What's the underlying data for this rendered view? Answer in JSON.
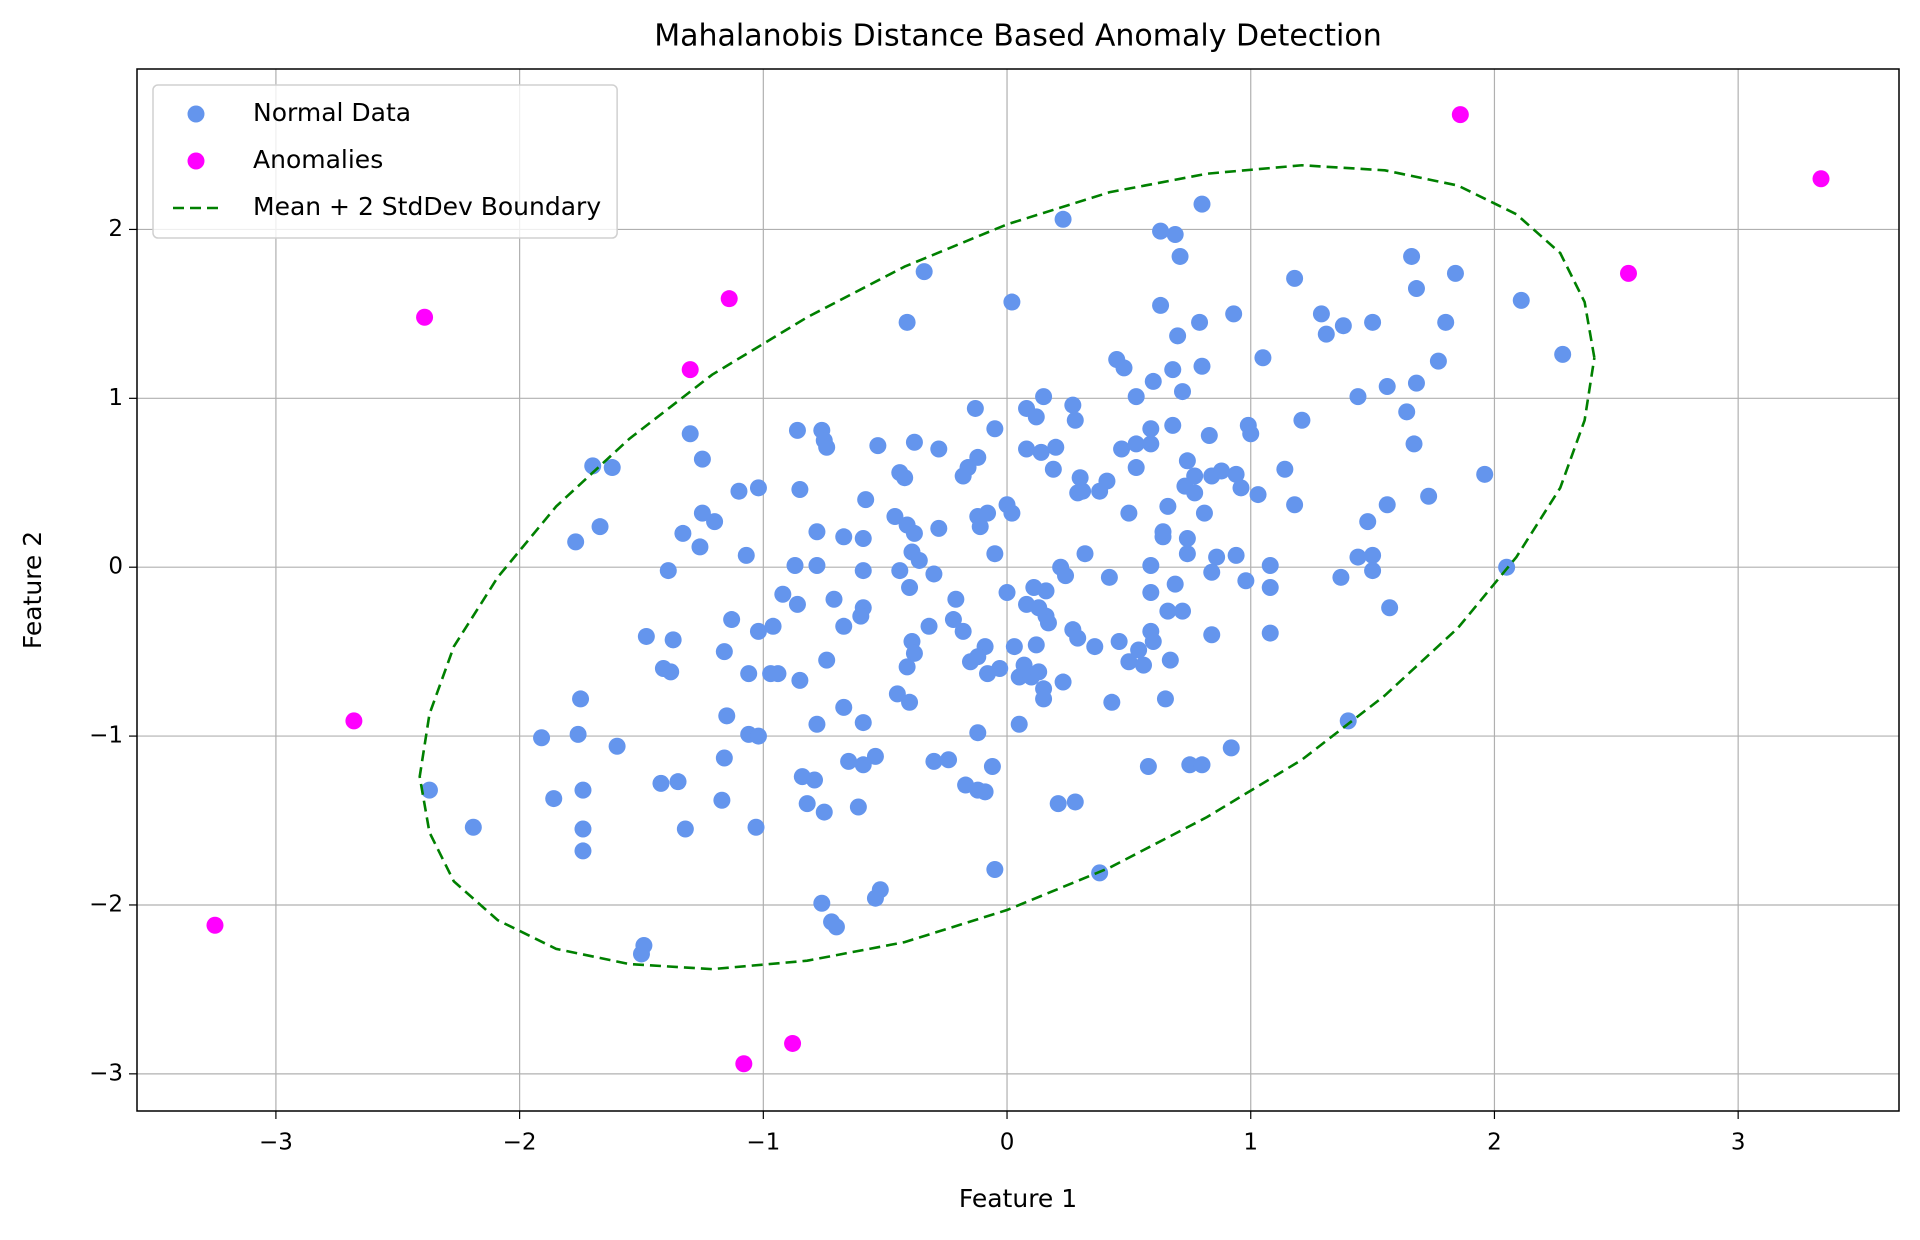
{
  "chart_data": {
    "type": "scatter",
    "title": "Mahalanobis Distance Based Anomaly Detection",
    "x_label": "Feature 1",
    "y_label": "Feature 2",
    "xlim": [
      -3.57,
      3.66
    ],
    "ylim": [
      -3.22,
      2.95
    ],
    "xticks": [
      {
        "value": -3,
        "label": "−3"
      },
      {
        "value": -2,
        "label": "−2"
      },
      {
        "value": -1,
        "label": "−1"
      },
      0,
      1,
      2,
      3
    ],
    "yticks": [
      {
        "value": -3,
        "label": "−3"
      },
      {
        "value": -2,
        "label": "−2"
      },
      {
        "value": -1,
        "label": "−1"
      },
      0,
      1,
      2
    ],
    "grid": true,
    "legend": "upper left",
    "series": [
      {
        "name": "Normal Data",
        "type": "scatter",
        "color": "#6495ed",
        "x": [
          0.23,
          0.63,
          0.69,
          0.8,
          0.71,
          -0.34,
          0.02,
          -0.41,
          0.63,
          0.7,
          0.79,
          0.93,
          1.18,
          1.29,
          1.31,
          1.38,
          1.5,
          1.66,
          1.68,
          1.84,
          1.8,
          1.77,
          2.11,
          2.28,
          1.05,
          0.45,
          0.48,
          0.53,
          0.6,
          0.68,
          0.8,
          0.72,
          1.44,
          1.56,
          1.68,
          1.64,
          1.67,
          1.21,
          0.99,
          1.0,
          0.83,
          0.68,
          0.15,
          0.08,
          0.12,
          0.27,
          0.28,
          -0.13,
          -0.05,
          -0.86,
          -0.76,
          -0.75,
          -0.74,
          -1.3,
          -1.25,
          -0.53,
          -0.38,
          -0.28,
          -0.12,
          -0.16,
          -0.18,
          -0.44,
          -0.42,
          0.08,
          0.14,
          0.2,
          0.19,
          0.3,
          0.31,
          0.38,
          0.41,
          0.47,
          0.53,
          0.59,
          0.59,
          0.53,
          0.74,
          0.77,
          0.73,
          0.77,
          0.84,
          0.88,
          0.94,
          0.96,
          1.03,
          1.14,
          1.18,
          1.96,
          1.73,
          1.56,
          1.48,
          -1.7,
          -1.62,
          -1.67,
          -1.77,
          -1.25,
          -1.2,
          -1.33,
          -1.26,
          -1.39,
          -1.1,
          -1.02,
          -1.07,
          -0.85,
          -0.78,
          -0.58,
          -0.67,
          -0.59,
          -0.46,
          -0.41,
          -0.38,
          -0.28,
          -0.39,
          -0.36,
          -0.12,
          -0.11,
          -0.08,
          0,
          0.02,
          -0.05,
          0.29,
          0.32,
          0.64,
          0.64,
          0.74,
          0.74,
          0.86,
          0.94,
          0.81,
          0.66,
          0.5,
          0.59,
          0.84,
          1.08,
          0.98,
          1.44,
          1.5,
          1.37,
          1.5,
          1.57,
          1.08,
          1.08,
          2.05,
          0.22,
          0.24,
          0.42,
          -0.44,
          -0.3,
          -0.59,
          -0.87,
          -0.78,
          -0.92,
          -0.86,
          -0.71,
          -0.59,
          -0.6,
          -0.67,
          -0.4,
          -0.21,
          0,
          0.08,
          0.11,
          0.16,
          0.13,
          0.16,
          0.17,
          0.59,
          0.69,
          0.66,
          0.72,
          0.84,
          -1.13,
          -1.02,
          -0.96,
          -1.48,
          -1.37,
          -1.16,
          -1.06,
          -0.97,
          -0.94,
          -0.85,
          -0.74,
          -1.41,
          -1.38,
          -0.39,
          -0.38,
          -0.41,
          -0.32,
          -0.22,
          -0.18,
          -0.09,
          -0.12,
          -0.15,
          -0.03,
          -0.08,
          0.03,
          0.07,
          0.05,
          0.1,
          0.13,
          0.12,
          0.15,
          0.15,
          0.23,
          0.27,
          0.29,
          0.36,
          0.46,
          0.5,
          0.54,
          0.56,
          0.59,
          0.6,
          0.67,
          0.65,
          0.43,
          -0.45,
          -0.4,
          -0.67,
          -0.59,
          -0.78,
          0.05,
          -0.12,
          -1.15,
          -1.06,
          -1.02,
          -1.75,
          -1.76,
          -1.91,
          -1.6,
          -1.16,
          -0.65,
          -0.59,
          -0.54,
          -0.3,
          -0.24,
          -0.06,
          -0.17,
          -0.12,
          -0.09,
          0.58,
          0.75,
          0.8,
          0.92,
          1.4,
          -0.84,
          -0.79,
          -1.42,
          -1.35,
          -1.74,
          -1.86,
          -1.17,
          -0.82,
          -0.75,
          -0.61,
          -2.37,
          -2.19,
          -1.74,
          -1.74,
          -1.32,
          -1.03,
          0.21,
          0.28,
          -0.05,
          0.38,
          -0.76,
          -0.72,
          -0.7,
          -0.54,
          -0.52,
          -1.49,
          -1.5
        ],
        "y": [
          2.06,
          1.99,
          1.97,
          2.15,
          1.84,
          1.75,
          1.57,
          1.45,
          1.55,
          1.37,
          1.45,
          1.5,
          1.71,
          1.5,
          1.38,
          1.43,
          1.45,
          1.84,
          1.65,
          1.74,
          1.45,
          1.22,
          1.58,
          1.26,
          1.24,
          1.23,
          1.18,
          1.01,
          1.1,
          1.17,
          1.19,
          1.04,
          1.01,
          1.07,
          1.09,
          0.92,
          0.73,
          0.87,
          0.84,
          0.79,
          0.78,
          0.84,
          1.01,
          0.94,
          0.89,
          0.96,
          0.87,
          0.94,
          0.82,
          0.81,
          0.81,
          0.75,
          0.71,
          0.79,
          0.64,
          0.72,
          0.74,
          0.7,
          0.65,
          0.59,
          0.54,
          0.56,
          0.53,
          0.7,
          0.68,
          0.71,
          0.58,
          0.53,
          0.45,
          0.45,
          0.51,
          0.7,
          0.73,
          0.73,
          0.82,
          0.59,
          0.63,
          0.54,
          0.48,
          0.44,
          0.54,
          0.57,
          0.55,
          0.47,
          0.43,
          0.58,
          0.37,
          0.55,
          0.42,
          0.37,
          0.27,
          0.6,
          0.59,
          0.24,
          0.15,
          0.32,
          0.27,
          0.2,
          0.12,
          -0.02,
          0.45,
          0.47,
          0.07,
          0.46,
          0.21,
          0.4,
          0.18,
          0.17,
          0.3,
          0.25,
          0.2,
          0.23,
          0.09,
          0.04,
          0.3,
          0.24,
          0.32,
          0.37,
          0.32,
          0.08,
          0.44,
          0.08,
          0.21,
          0.18,
          0.17,
          0.08,
          0.06,
          0.07,
          0.32,
          0.36,
          0.32,
          0.01,
          -0.03,
          0.01,
          -0.08,
          0.06,
          0.07,
          -0.06,
          -0.02,
          -0.24,
          -0.12,
          -0.39,
          0,
          0,
          -0.05,
          -0.06,
          -0.02,
          -0.04,
          -0.02,
          0.01,
          0.01,
          -0.16,
          -0.22,
          -0.19,
          -0.24,
          -0.29,
          -0.35,
          -0.12,
          -0.19,
          -0.15,
          -0.22,
          -0.12,
          -0.14,
          -0.24,
          -0.29,
          -0.33,
          -0.15,
          -0.1,
          -0.26,
          -0.26,
          -0.4,
          -0.31,
          -0.38,
          -0.35,
          -0.41,
          -0.43,
          -0.5,
          -0.63,
          -0.63,
          -0.63,
          -0.67,
          -0.55,
          -0.6,
          -0.62,
          -0.44,
          -0.51,
          -0.59,
          -0.35,
          -0.31,
          -0.38,
          -0.47,
          -0.53,
          -0.56,
          -0.6,
          -0.63,
          -0.47,
          -0.58,
          -0.65,
          -0.65,
          -0.62,
          -0.46,
          -0.72,
          -0.78,
          -0.68,
          -0.37,
          -0.42,
          -0.47,
          -0.44,
          -0.56,
          -0.49,
          -0.58,
          -0.38,
          -0.44,
          -0.55,
          -0.78,
          -0.8,
          -0.75,
          -0.8,
          -0.83,
          -0.92,
          -0.93,
          -0.93,
          -0.98,
          -0.88,
          -0.99,
          -1.0,
          -0.78,
          -0.99,
          -1.01,
          -1.06,
          -1.13,
          -1.15,
          -1.17,
          -1.12,
          -1.15,
          -1.14,
          -1.18,
          -1.29,
          -1.32,
          -1.33,
          -1.18,
          -1.17,
          -1.17,
          -1.07,
          -0.91,
          -1.24,
          -1.26,
          -1.28,
          -1.27,
          -1.32,
          -1.37,
          -1.38,
          -1.4,
          -1.45,
          -1.42,
          -1.32,
          -1.54,
          -1.55,
          -1.68,
          -1.55,
          -1.54,
          -1.4,
          -1.39,
          -1.79,
          -1.81,
          -1.99,
          -2.1,
          -2.13,
          -1.96,
          -1.91,
          -2.24,
          -2.29
        ]
      },
      {
        "name": "Anomalies",
        "type": "scatter",
        "color": "#ff00ff",
        "x": [
          1.86,
          3.34,
          2.55,
          -2.39,
          -1.14,
          -1.3,
          -2.68,
          -3.25,
          -1.08,
          -0.88
        ],
        "y": [
          2.68,
          2.3,
          1.74,
          1.48,
          1.59,
          1.17,
          -0.91,
          -2.12,
          -2.94,
          -2.82
        ]
      },
      {
        "name": "Mean + 2 StdDev Boundary",
        "type": "line",
        "color": "#008000",
        "linestyle": "dashed",
        "x": [
          2.41,
          2.37,
          2.27,
          2.09,
          1.85,
          1.55,
          1.21,
          0.82,
          0.42,
          0,
          -0.42,
          -0.82,
          -1.21,
          -1.55,
          -1.85,
          -2.09,
          -2.27,
          -2.37,
          -2.41,
          -2.37,
          -2.27,
          -2.09,
          -1.85,
          -1.55,
          -1.21,
          -0.82,
          -0.42,
          0,
          0.42,
          0.82,
          1.21,
          1.55,
          1.85,
          2.09,
          2.27,
          2.37,
          2.41
        ],
        "y": [
          1.24,
          1.57,
          1.86,
          2.09,
          2.26,
          2.35,
          2.38,
          2.33,
          2.22,
          2.03,
          1.78,
          1.48,
          1.14,
          0.76,
          0.36,
          -0.06,
          -0.47,
          -0.87,
          -1.24,
          -1.57,
          -1.86,
          -2.09,
          -2.26,
          -2.35,
          -2.38,
          -2.33,
          -2.22,
          -2.03,
          -1.78,
          -1.48,
          -1.14,
          -0.76,
          -0.36,
          0.06,
          0.47,
          0.87,
          1.24
        ]
      }
    ]
  }
}
